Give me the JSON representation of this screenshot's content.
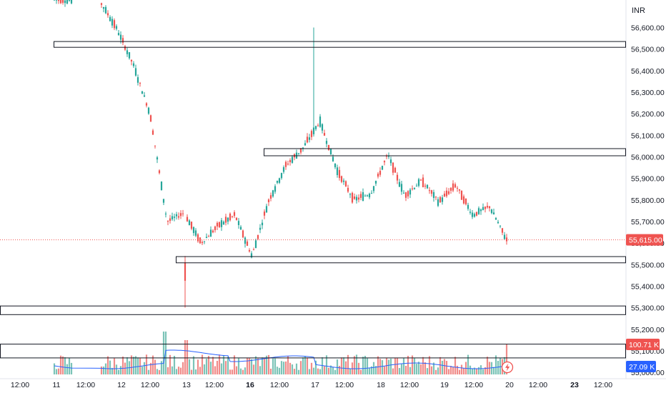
{
  "chart_data": {
    "type": "candlestick",
    "currency": "INR",
    "y_axis": {
      "min": 55030,
      "max": 56680,
      "ticks": [
        "56,600.00",
        "56,500.00",
        "56,400.00",
        "56,300.00",
        "56,200.00",
        "56,100.00",
        "56,000.00",
        "55,900.00",
        "55,800.00",
        "55,700.00",
        "55,600.00",
        "55,500.00",
        "55,400.00",
        "55,300.00",
        "55,200.00",
        "55,100.00",
        "55,000.00"
      ],
      "tick_values": [
        56600,
        56500,
        56400,
        56300,
        56200,
        56100,
        56000,
        55900,
        55800,
        55700,
        55600,
        55500,
        55400,
        55300,
        55200,
        55100,
        55000
      ]
    },
    "x_axis": {
      "labels": [
        {
          "text": "12:00",
          "bold": false
        },
        {
          "text": "11",
          "bold": false
        },
        {
          "text": "12:00",
          "bold": false
        },
        {
          "text": "12",
          "bold": false
        },
        {
          "text": "12:00",
          "bold": false
        },
        {
          "text": "13",
          "bold": false
        },
        {
          "text": "12:00",
          "bold": false
        },
        {
          "text": "16",
          "bold": true
        },
        {
          "text": "12:00",
          "bold": false
        },
        {
          "text": "17",
          "bold": false
        },
        {
          "text": "12:00",
          "bold": false
        },
        {
          "text": "18",
          "bold": false
        },
        {
          "text": "12:00",
          "bold": false
        },
        {
          "text": "19",
          "bold": false
        },
        {
          "text": "12:00",
          "bold": false
        },
        {
          "text": "20",
          "bold": false
        },
        {
          "text": "12:00",
          "bold": false
        },
        {
          "text": "23",
          "bold": true
        },
        {
          "text": "12:00",
          "bold": false
        }
      ]
    },
    "last_price": {
      "value": 55615,
      "label": "55,615.00"
    },
    "volume": {
      "last_label": "100.71 K",
      "ma_label": "27.09 K"
    },
    "zones": [
      {
        "low": 56508,
        "high": 56535
      },
      {
        "low": 56005,
        "high": 56038
      },
      {
        "low": 55508,
        "high": 55537
      },
      {
        "low": 55268,
        "high": 55308
      },
      {
        "low": 55067,
        "high": 55131
      }
    ],
    "price_path": [
      [
        56700,
        56728
      ],
      [
        56630,
        56728
      ],
      [
        56500,
        56600
      ],
      [
        56580,
        56430
      ],
      [
        56430,
        56200
      ],
      [
        55545,
        55700
      ],
      [
        55600,
        55740
      ],
      [
        55550,
        55600
      ],
      [
        55570,
        55680
      ],
      [
        55640,
        55730
      ],
      [
        55510,
        55540
      ],
      [
        55545,
        55800
      ],
      [
        55830,
        55960
      ],
      [
        55950,
        56040
      ],
      [
        56020,
        56165
      ],
      [
        56000,
        55940
      ],
      [
        55900,
        55800
      ],
      [
        55760,
        55830
      ],
      [
        55680,
        56010
      ],
      [
        55950,
        55820
      ],
      [
        55800,
        55890
      ],
      [
        55800,
        55790
      ],
      [
        55990,
        55870
      ],
      [
        55790,
        55730
      ],
      [
        55680,
        55770
      ],
      [
        55620,
        55615
      ]
    ],
    "colors": {
      "up": "#26a69a",
      "down": "#ef5350",
      "up_volume": "#7cc4b8",
      "down_volume": "#f08c8a",
      "ma_line": "#2962ff"
    }
  }
}
